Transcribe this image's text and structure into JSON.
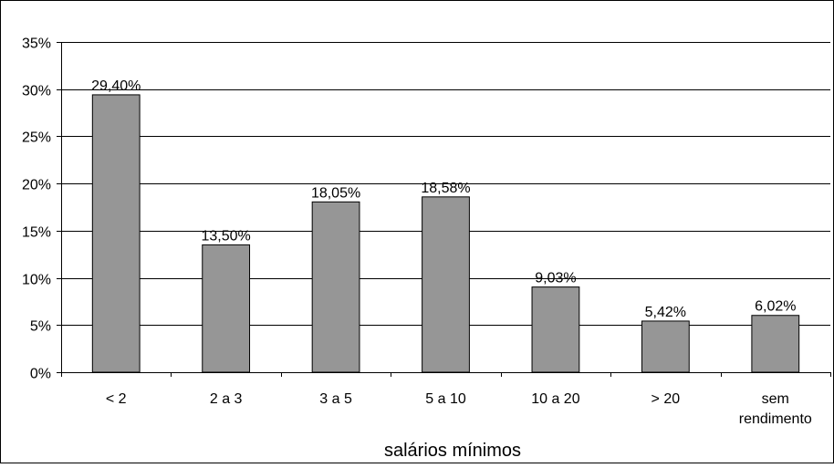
{
  "chart_data": {
    "type": "bar",
    "categories": [
      [
        "< 2"
      ],
      [
        "2 a 3"
      ],
      [
        "3 a 5"
      ],
      [
        "5 a 10"
      ],
      [
        "10 a 20"
      ],
      [
        "> 20"
      ],
      [
        "sem",
        "rendimento"
      ]
    ],
    "values": [
      29.4,
      13.5,
      18.05,
      18.58,
      9.03,
      5.42,
      6.02
    ],
    "value_labels": [
      "29,40%",
      "13,50%",
      "18,05%",
      "18,58%",
      "9,03%",
      "5,42%",
      "6,02%"
    ],
    "yticks": [
      0,
      5,
      10,
      15,
      20,
      25,
      30,
      35
    ],
    "ytick_labels": [
      "0%",
      "5%",
      "10%",
      "15%",
      "20%",
      "25%",
      "30%",
      "35%"
    ],
    "ylim": [
      0,
      35
    ],
    "xlabel": "salários mínimos",
    "ylabel": "",
    "title": "",
    "grid": true,
    "legend": "none",
    "bar_color": "#969696",
    "bar_edge_color": "#000000",
    "gridline_color": "#000000"
  }
}
